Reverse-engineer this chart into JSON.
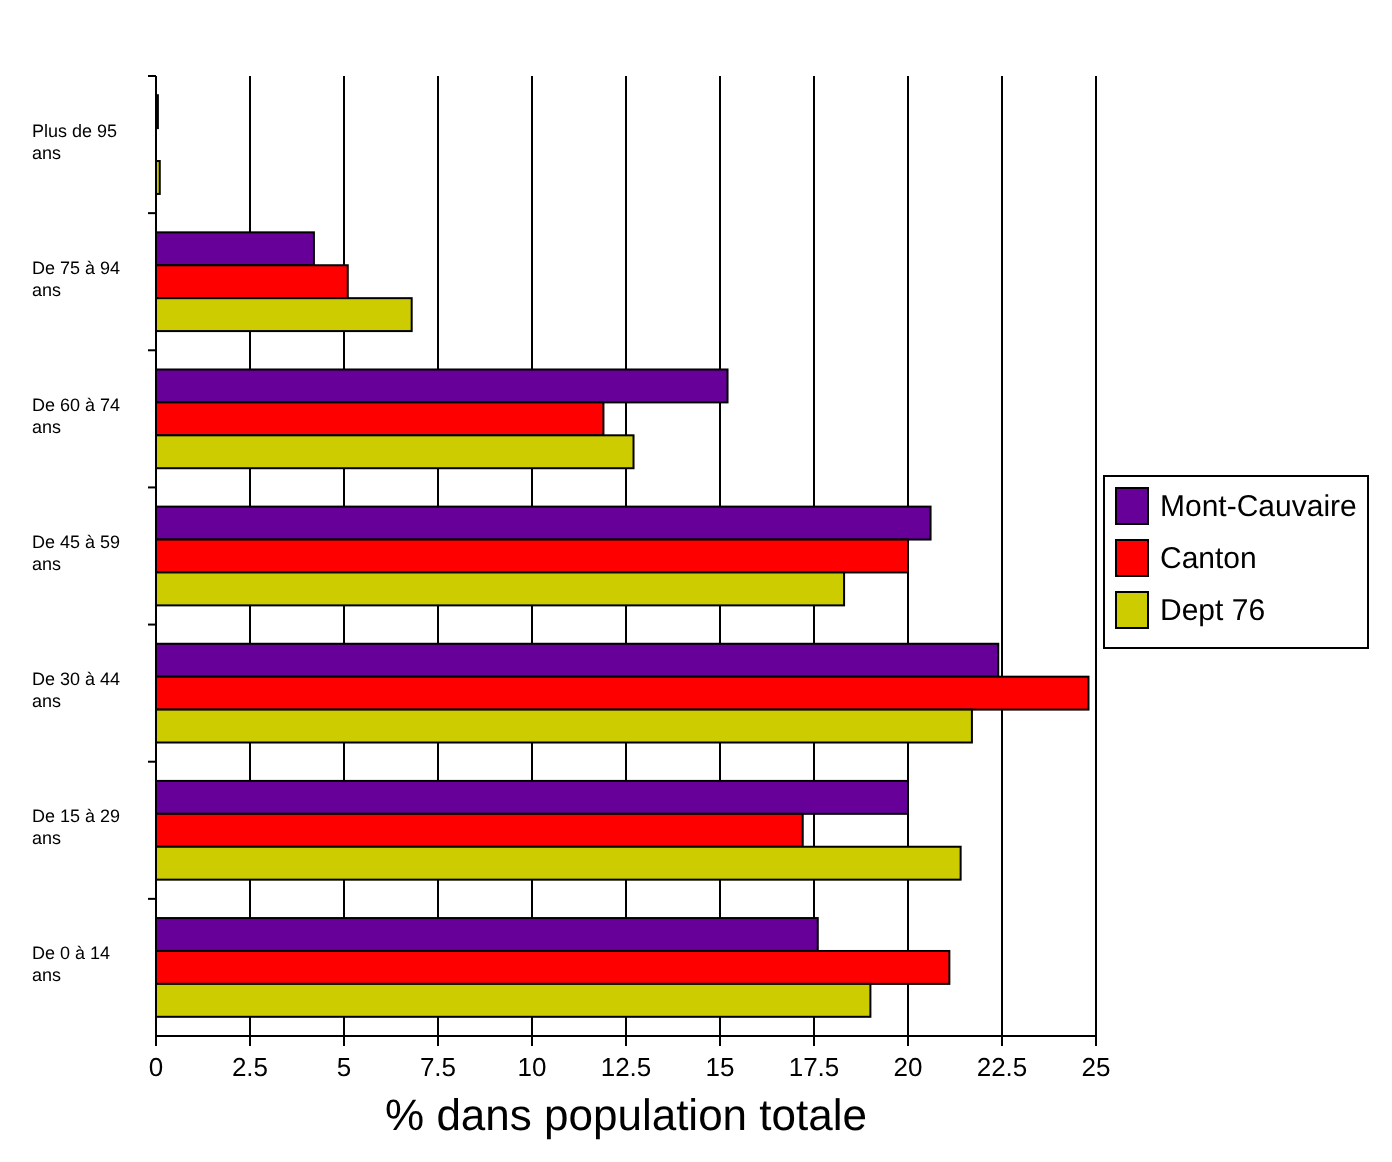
{
  "chart_data": {
    "type": "bar",
    "orientation": "horizontal",
    "xlabel": "% dans population totale",
    "categories": [
      "Plus de 95 ans",
      "De 75 à 94 ans",
      "De 60 à 74 ans",
      "De 45 à 59 ans",
      "De 30 à 44 ans",
      "De 15 à 29 ans",
      "De 0 à 14 ans"
    ],
    "series": [
      {
        "name": "Mont-Cauvaire",
        "color": "#660099",
        "values": [
          0.05,
          4.2,
          15.2,
          20.6,
          22.4,
          20.0,
          17.6
        ]
      },
      {
        "name": "Canton",
        "color": "#ff0000",
        "values": [
          0,
          5.1,
          11.9,
          20.0,
          24.8,
          17.2,
          21.1
        ]
      },
      {
        "name": "Dept 76",
        "color": "#cccc00",
        "values": [
          0.1,
          6.8,
          12.7,
          18.3,
          21.7,
          21.4,
          19.0
        ]
      }
    ],
    "xlim": [
      0,
      25
    ],
    "xticks": [
      0,
      2.5,
      5,
      7.5,
      10,
      12.5,
      15,
      17.5,
      20,
      22.5,
      25
    ],
    "grid": "x",
    "legend": "right"
  }
}
